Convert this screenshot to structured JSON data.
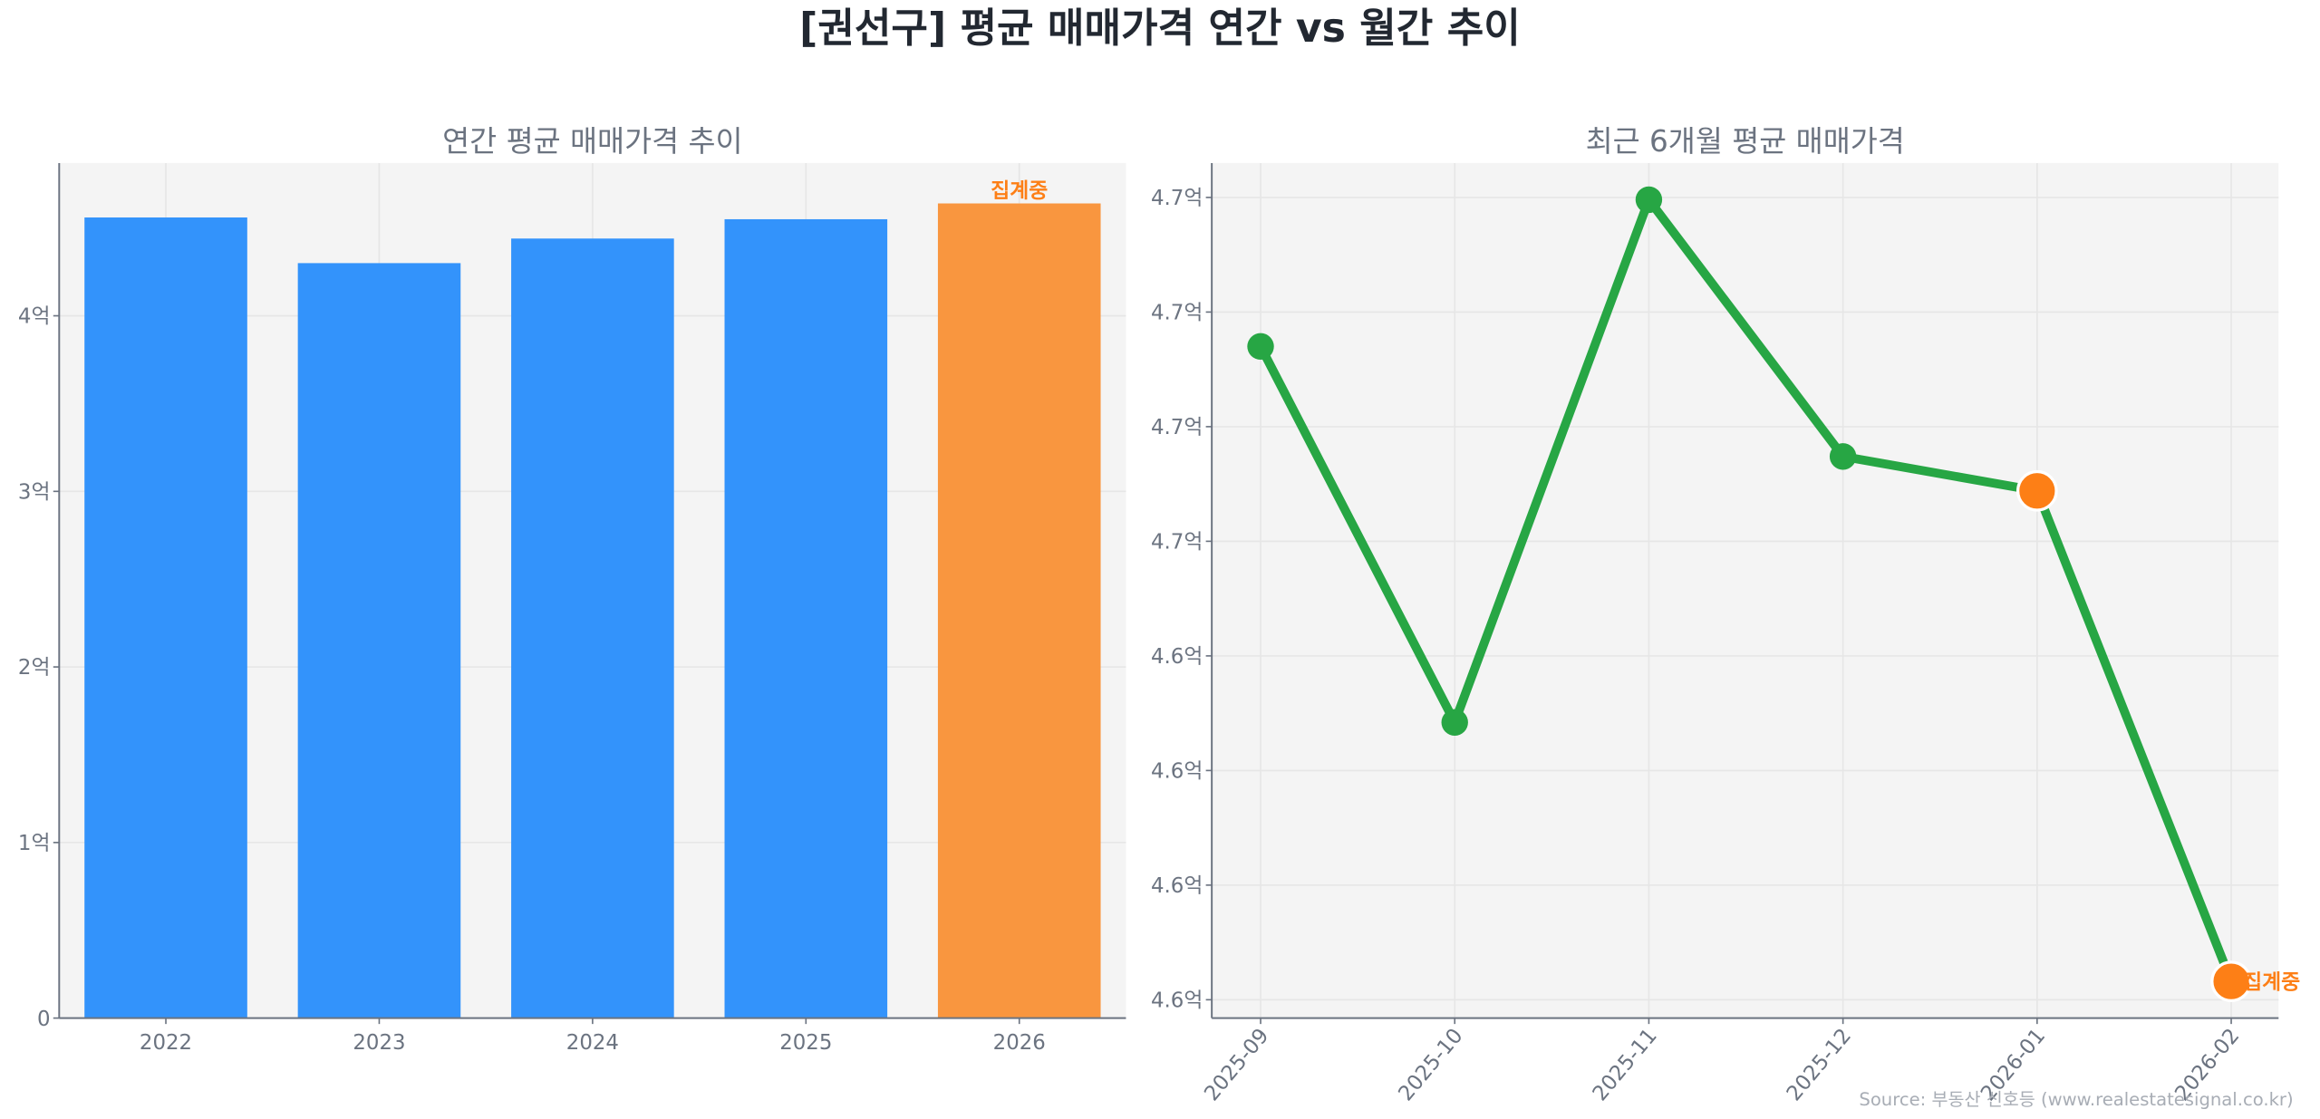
{
  "title": "[권선구] 평균 매매가격 연간 vs 월간 추이",
  "source": "Source: 부동산 신호등 (www.realestatesignal.co.kr)",
  "colors": {
    "bar": "#3393fb",
    "bar_partial": "#f9963f",
    "line": "#27a644",
    "marker_partial": "#fd7f16",
    "plot_bg": "#f4f4f4"
  },
  "chart_data": [
    {
      "type": "bar",
      "title": "연간 평균 매매가격 추이",
      "categories": [
        "2022",
        "2023",
        "2024",
        "2025",
        "2026"
      ],
      "values": [
        4.56,
        4.3,
        4.44,
        4.55,
        4.64
      ],
      "partial": [
        false,
        false,
        false,
        false,
        true
      ],
      "annotation": "집계중",
      "unit": "억",
      "yticks": [
        0,
        1,
        2,
        3,
        4
      ],
      "ytick_labels": [
        "0",
        "1억",
        "2억",
        "3억",
        "4억"
      ],
      "ylim": [
        0,
        4.87
      ],
      "grid": true
    },
    {
      "type": "line",
      "title": "최근 6개월 평균 매매가격",
      "categories": [
        "2025-09",
        "2025-10",
        "2025-11",
        "2025-12",
        "2026-01",
        "2026-02"
      ],
      "values": [
        4.6585,
        4.6421,
        4.6649,
        4.6537,
        4.6522,
        4.6308
      ],
      "partial": [
        false,
        false,
        false,
        false,
        true,
        true
      ],
      "annotation": "집계중",
      "unit": "억",
      "yticks": [
        4.63,
        4.635,
        4.64,
        4.645,
        4.65,
        4.655,
        4.66,
        4.665
      ],
      "ytick_labels": [
        "4.6억",
        "4.6억",
        "4.6억",
        "4.6억",
        "4.7억",
        "4.7억",
        "4.7억",
        "4.7억"
      ],
      "ylim": [
        4.6292,
        4.6665
      ],
      "grid": true
    }
  ]
}
